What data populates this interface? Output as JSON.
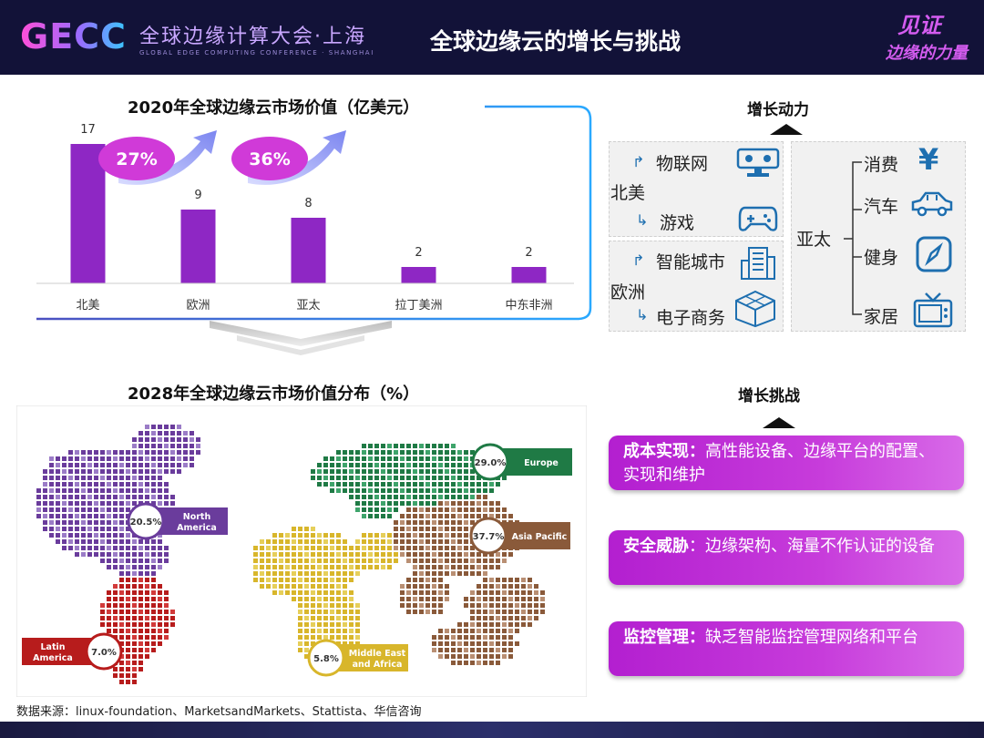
{
  "header": {
    "logo": "GECC",
    "conf_cn": "全球边缘计算大会·上海",
    "conf_en": "GLOBAL EDGE COMPUTING CONFERENCE · SHANGHAI",
    "title": "全球边缘云的增长与挑战",
    "slogan_line1": "见证",
    "slogan_line2": "边缘的力量"
  },
  "chart_data": [
    {
      "type": "bar",
      "title": "2020年全球边缘云市场价值（亿美元）",
      "categories": [
        "北美",
        "欧洲",
        "亚太",
        "拉丁美洲",
        "中东非洲"
      ],
      "values": [
        17,
        9,
        8,
        2,
        2
      ],
      "ylim": [
        0,
        18
      ],
      "color": "#8e27c4",
      "annotations": [
        "27%",
        "36%"
      ],
      "grid": false
    },
    {
      "type": "map",
      "title": "2028年全球边缘云市场价值分布（%）",
      "regions": [
        {
          "name": "North America",
          "value": "20.5%",
          "color": "#6a3c9c"
        },
        {
          "name": "Europe",
          "value": "29.0%",
          "color": "#1f7a45"
        },
        {
          "name": "Asia Pacific",
          "value": "37.7%",
          "color": "#8a5a3a"
        },
        {
          "name": "Latin America",
          "value": "7.0%",
          "color": "#b71c1c"
        },
        {
          "name": "Middle East and Africa",
          "value": "5.8%",
          "color": "#d8b62b"
        }
      ]
    }
  ],
  "drivers": {
    "title": "增长动力",
    "groups": [
      {
        "region": "北美",
        "items": [
          "物联网",
          "游戏"
        ]
      },
      {
        "region": "欧洲",
        "items": [
          "智能城市",
          "电子商务"
        ]
      },
      {
        "region": "亚太",
        "items": [
          "消费",
          "汽车",
          "健身",
          "家居"
        ]
      }
    ],
    "icons": [
      "iot-icon",
      "gamepad-icon",
      "city-icon",
      "cube-icon",
      "yen-icon",
      "car-icon",
      "compass-icon",
      "tv-icon"
    ]
  },
  "challenges": {
    "title": "增长挑战",
    "items": [
      {
        "label": "成本实现：",
        "text": "高性能设备、边缘平台的配置、实现和维护"
      },
      {
        "label": "安全威胁",
        "text": "：边缘架构、海量不作认证的设备"
      },
      {
        "label": "监控管理：",
        "text": "缺乏智能监控管理网络和平台"
      }
    ]
  },
  "source": "数据来源：linux-foundation、MarketsandMarkets、Stattista、华信咨询"
}
